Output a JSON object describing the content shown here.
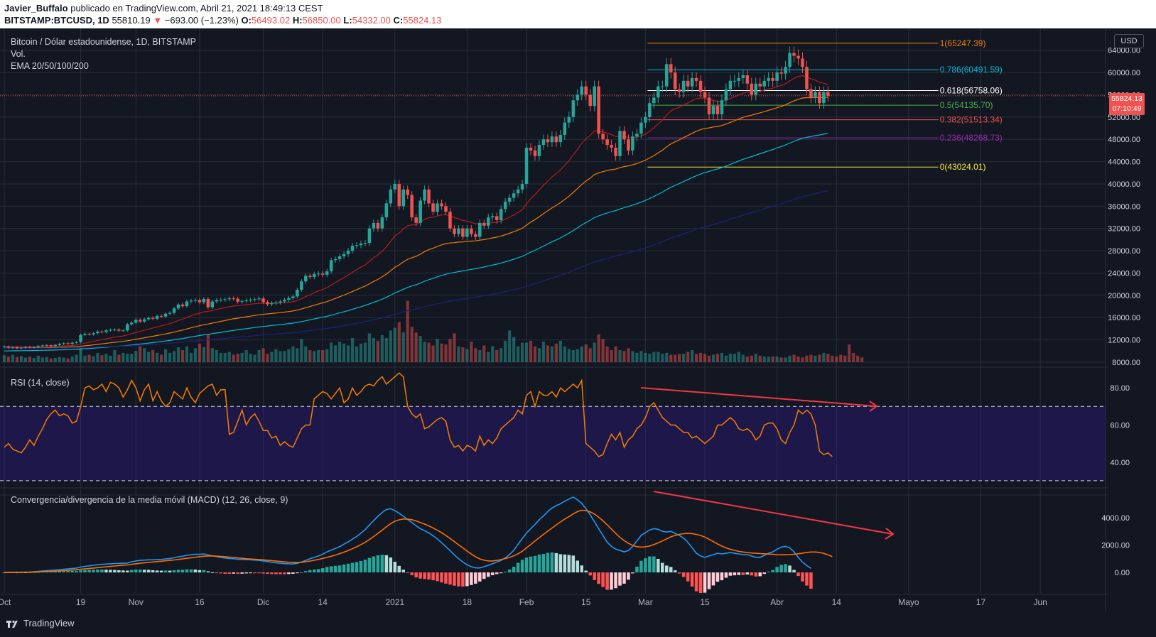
{
  "header": {
    "author": "Javier_Buffalo",
    "published_text": "publicado en TradingView.com, Abril 21, 2021 18:49:13 CEST",
    "symbol": "BITSTAMP:BTCUSD, 1D",
    "last_price": "55810.19",
    "change": "−693.00 (−1.23%)",
    "o_label": "O:",
    "o_value": "56493.02",
    "h_label": "H:",
    "h_value": "56850.00",
    "l_label": "L:",
    "l_value": "54332.00",
    "c_label": "C:",
    "c_value": "55824.13"
  },
  "legend": {
    "title": "Bitcoin / Dólar estadounidense, 1D, BITSTAMP",
    "volume": "Vol.",
    "ema": "EMA 20/50/100/200",
    "rsi": "RSI (14, close)",
    "macd": "Convergencia/divergencia de la media móvil (MACD) (12, 26, close, 9)"
  },
  "axis": {
    "currency": "USD",
    "price_tag_value": "55824.13",
    "price_tag_timer": "07:10:49"
  },
  "footer": {
    "brand": "TradingView"
  },
  "colors": {
    "up": "#26a69a",
    "down": "#ef5350",
    "background": "#131722",
    "grid": "#2a2e39",
    "ema20": "#b71c1c",
    "ema50": "#f57c00",
    "ema100": "#00bcd4",
    "ema200": "#1a237e",
    "rsi_line": "#f57c00",
    "rsi_band": "#311b92",
    "macd_line": "#2196f3",
    "signal_line": "#ff6d00"
  },
  "chart_data": [
    {
      "type": "candlestick",
      "title": "Bitcoin / Dólar estadounidense, 1D, BITSTAMP",
      "x_ticks": [
        "Oct",
        "19",
        "Nov",
        "16",
        "Dic",
        "14",
        "2021",
        "18",
        "Feb",
        "15",
        "Mar",
        "15",
        "Abr",
        "14",
        "Mayo",
        "17",
        "Jun"
      ],
      "x_tick_days": [
        0,
        18,
        31,
        46,
        61,
        75,
        92,
        109,
        123,
        137,
        151,
        165,
        182,
        196,
        213,
        230,
        244
      ],
      "x_range_days": [
        0,
        250
      ],
      "y_ticks": [
        64000,
        60000,
        56000,
        52000,
        48000,
        44000,
        40000,
        36000,
        32000,
        28000,
        24000,
        20000,
        16000,
        12000,
        8000
      ],
      "ylim": [
        8000,
        66000
      ],
      "closes": [
        10800,
        10600,
        10700,
        10500,
        10600,
        10750,
        10650,
        10700,
        10900,
        11000,
        11050,
        10900,
        11100,
        11300,
        11400,
        11300,
        11500,
        11600,
        12900,
        13100,
        13000,
        13200,
        13500,
        13400,
        13700,
        13800,
        13850,
        13650,
        13700,
        14800,
        15100,
        15600,
        15300,
        15700,
        15950,
        15800,
        16300,
        16200,
        16700,
        16850,
        17650,
        18350,
        18050,
        18900,
        19050,
        19150,
        18750,
        19350,
        17850,
        18900,
        19150,
        19200,
        19300,
        19450,
        19400,
        18850,
        18950,
        19100,
        19200,
        19300,
        19450,
        18800,
        18400,
        18600,
        18700,
        18900,
        19200,
        19500,
        19800,
        21000,
        22500,
        23500,
        23300,
        23800,
        23900,
        23700,
        24300,
        26300,
        26500,
        27000,
        27400,
        28000,
        28900,
        29000,
        29300,
        29400,
        32000,
        33000,
        32000,
        34000,
        36500,
        39000,
        40000,
        36000,
        39000,
        38000,
        34000,
        33000,
        37000,
        39000,
        36500,
        35000,
        36500,
        36000,
        35000,
        32000,
        31000,
        32000,
        30500,
        32000,
        31000,
        30500,
        33000,
        32500,
        34000,
        34200,
        33500,
        35500,
        36800,
        37500,
        38300,
        39000,
        40000,
        46500,
        46000,
        45000,
        47000,
        48000,
        47500,
        48500,
        47500,
        48800,
        51000,
        52000,
        55000,
        56000,
        57500,
        56000,
        54000,
        57500,
        49000,
        48000,
        47000,
        46500,
        45000,
        49500,
        48000,
        46000,
        48500,
        49000,
        51000,
        52000,
        54500,
        55500,
        57500,
        57500,
        61500,
        60000,
        57000,
        56500,
        58500,
        57500,
        59000,
        58500,
        56500,
        55500,
        52500,
        54000,
        52500,
        55000,
        57000,
        58500,
        58500,
        59000,
        59500,
        58000,
        56000,
        58000,
        57500,
        58500,
        59000,
        58500,
        60000,
        59800,
        61000,
        63500,
        63000,
        62500,
        61000,
        57000,
        55500,
        56500,
        54500,
        56500,
        55824
      ],
      "ema20_end": 58500,
      "ema50_end": 57000,
      "ema100_end": 49300,
      "ema200_end": 38800
    },
    {
      "type": "bar",
      "title": "Vol.",
      "values": [
        1.5,
        1.2,
        1.6,
        1.1,
        1.3,
        1.0,
        1.2,
        0.9,
        1.4,
        1.0,
        1.1,
        0.8,
        0.9,
        1.1,
        1.0,
        0.8,
        1.2,
        1.6,
        3.2,
        1.4,
        1.6,
        1.3,
        2.0,
        1.5,
        1.8,
        1.4,
        2.6,
        1.6,
        2.0,
        1.8,
        1.8,
        2.4,
        3.4,
        3.0,
        2.2,
        2.6,
        2.0,
        1.6,
        2.8,
        2.0,
        2.4,
        3.2,
        2.6,
        3.4,
        2.0,
        3.0,
        4.0,
        3.2,
        6.0,
        3.0,
        2.6,
        2.0,
        2.0,
        2.2,
        1.6,
        1.8,
        2.0,
        2.6,
        1.8,
        1.6,
        2.6,
        3.0,
        1.8,
        2.2,
        2.8,
        2.4,
        2.4,
        2.8,
        3.4,
        3.0,
        5.0,
        3.4,
        2.6,
        2.4,
        2.6,
        2.6,
        2.8,
        4.2,
        3.6,
        4.4,
        4.0,
        3.6,
        5.2,
        3.4,
        4.0,
        4.2,
        6.2,
        5.2,
        4.6,
        5.8,
        5.2,
        6.8,
        7.4,
        8.6,
        6.4,
        13.2,
        7.6,
        6.4,
        5.6,
        4.4,
        4.2,
        3.6,
        5.0,
        4.0,
        3.8,
        5.0,
        6.2,
        3.4,
        3.2,
        2.8,
        4.4,
        3.0,
        2.6,
        3.6,
        2.2,
        3.4,
        2.6,
        3.0,
        4.6,
        6.8,
        5.4,
        3.4,
        4.2,
        4.2,
        4.6,
        3.4,
        3.0,
        4.4,
        3.6,
        3.4,
        4.0,
        4.6,
        3.4,
        2.8,
        2.6,
        2.8,
        3.4,
        3.8,
        3.0,
        4.2,
        6.0,
        5.0,
        3.4,
        2.6,
        3.4,
        2.6,
        2.4,
        3.0,
        2.4,
        2.0,
        2.4,
        2.0,
        1.8,
        2.2,
        2.2,
        1.8,
        2.0,
        1.6,
        1.6,
        1.8,
        1.8,
        2.2,
        2.6,
        1.8,
        2.0,
        1.8,
        1.4,
        1.6,
        1.8,
        2.0,
        1.4,
        1.8,
        1.8,
        2.2,
        1.6,
        1.2,
        1.4,
        1.8,
        1.4,
        1.2,
        1.2,
        1.2,
        1.2,
        1.0,
        1.0,
        1.4,
        1.6,
        1.2,
        1.0,
        1.4,
        1.6,
        1.4,
        1.6,
        2.0,
        1.8,
        1.4,
        1.2,
        1.6,
        1.4,
        3.8,
        2.0,
        1.4,
        1.0
      ]
    },
    {
      "type": "fibonacci",
      "levels": [
        {
          "ratio": "1",
          "value": 65247.39,
          "label": "1(65247.39)",
          "color": "#f57c00"
        },
        {
          "ratio": "0.786",
          "value": 60491.59,
          "label": "0.786(60491.59)",
          "color": "#00bcd4"
        },
        {
          "ratio": "0.618",
          "value": 56758.06,
          "label": "0.618(56758.06)",
          "color": "#ffffff"
        },
        {
          "ratio": "0.5",
          "value": 54135.7,
          "label": "0.5(54135.70)",
          "color": "#4caf50"
        },
        {
          "ratio": "0.382",
          "value": 51513.34,
          "label": "0.382(51513.34)",
          "color": "#ef5350"
        },
        {
          "ratio": "0.236",
          "value": 48268.73,
          "label": "0.236(48268.73)",
          "color": "#9c27b0"
        },
        {
          "ratio": "0",
          "value": 43024.01,
          "label": "0(43024.01)",
          "color": "#ffeb3b"
        }
      ]
    },
    {
      "type": "line",
      "title": "RSI (14, close)",
      "y_ticks": [
        80,
        60,
        40
      ],
      "ylim": [
        25,
        90
      ],
      "band": [
        30,
        70
      ],
      "values": [
        48,
        50,
        47,
        46,
        45,
        48,
        52,
        49,
        54,
        58,
        63,
        66,
        68,
        65,
        66,
        65,
        61,
        62,
        70,
        80,
        81,
        79,
        80,
        82,
        78,
        83,
        82,
        80,
        75,
        79,
        84,
        80,
        73,
        79,
        82,
        73,
        78,
        73,
        70,
        72,
        78,
        76,
        74,
        80,
        75,
        72,
        77,
        79,
        81,
        82,
        76,
        79,
        79,
        55,
        56,
        62,
        68,
        60,
        64,
        66,
        62,
        57,
        57,
        53,
        54,
        49,
        51,
        49,
        48,
        53,
        58,
        60,
        60,
        74,
        76,
        78,
        77,
        74,
        77,
        80,
        72,
        74,
        80,
        76,
        78,
        81,
        82,
        81,
        84,
        86,
        82,
        84,
        86,
        88,
        86,
        70,
        66,
        64,
        66,
        58,
        59,
        61,
        63,
        64,
        62,
        52,
        48,
        49,
        46,
        49,
        48,
        46,
        54,
        49,
        52,
        50,
        53,
        58,
        60,
        62,
        64,
        68,
        66,
        76,
        78,
        70,
        78,
        76,
        76,
        78,
        75,
        80,
        78,
        80,
        82,
        80,
        84,
        50,
        48,
        46,
        43,
        44,
        50,
        55,
        52,
        56,
        48,
        52,
        54,
        58,
        60,
        64,
        70,
        72,
        68,
        64,
        62,
        60,
        60,
        58,
        56,
        56,
        53,
        54,
        52,
        50,
        52,
        54,
        60,
        60,
        62,
        64,
        62,
        58,
        57,
        58,
        56,
        52,
        54,
        60,
        61,
        61,
        58,
        52,
        50,
        56,
        60,
        68,
        66,
        68,
        66,
        60,
        46,
        44,
        45,
        43
      ]
    },
    {
      "type": "bar+line",
      "title": "Convergencia/divergencia de la media móvil (MACD) (12, 26, close, 9)",
      "y_ticks": [
        4000,
        2000,
        0
      ],
      "ylim": [
        -1500,
        5500
      ],
      "macd": [
        0,
        0,
        10,
        10,
        20,
        20,
        30,
        50,
        80,
        100,
        130,
        150,
        170,
        200,
        230,
        260,
        290,
        320,
        390,
        440,
        480,
        520,
        560,
        590,
        610,
        630,
        650,
        660,
        670,
        690,
        770,
        840,
        880,
        900,
        920,
        920,
        930,
        950,
        990,
        1010,
        1070,
        1140,
        1180,
        1250,
        1290,
        1320,
        1320,
        1350,
        1280,
        1210,
        1150,
        1100,
        1050,
        1020,
        1000,
        960,
        940,
        930,
        920,
        900,
        880,
        840,
        790,
        740,
        700,
        670,
        640,
        620,
        620,
        660,
        760,
        880,
        1000,
        1100,
        1200,
        1330,
        1500,
        1630,
        1750,
        1880,
        2060,
        2240,
        2430,
        2630,
        2870,
        3130,
        3460,
        3790,
        4100,
        4380,
        4590,
        4650,
        4520,
        4320,
        4100,
        3860,
        3650,
        3400,
        3200,
        3050,
        2880,
        2680,
        2440,
        2170,
        1880,
        1590,
        1280,
        1000,
        760,
        560,
        420,
        330,
        330,
        420,
        520,
        640,
        760,
        880,
        1060,
        1300,
        1620,
        2060,
        2470,
        2870,
        3200,
        3510,
        3850,
        4130,
        4440,
        4700,
        4880,
        5020,
        5200,
        5360,
        5500,
        5300,
        5050,
        4650,
        4200,
        3700,
        3200,
        2700,
        2200,
        1900,
        1700,
        1600,
        1500,
        1600,
        1900,
        2300,
        2700,
        2900,
        3100,
        3200,
        3150,
        3000,
        2950,
        3000,
        2850,
        2700,
        2500,
        2200,
        1800,
        1400,
        1200,
        1100,
        1200,
        1300,
        1400,
        1350,
        1400,
        1450,
        1400,
        1350,
        1300,
        1300,
        1200,
        1100,
        1100,
        1250,
        1400,
        1500,
        1700,
        1850,
        1900,
        1800,
        1500,
        1100,
        750,
        500,
        300
      ],
      "signal": [
        0,
        0,
        5,
        8,
        12,
        15,
        18,
        25,
        35,
        50,
        65,
        80,
        95,
        115,
        135,
        155,
        175,
        200,
        230,
        260,
        290,
        320,
        350,
        380,
        410,
        440,
        470,
        500,
        525,
        555,
        590,
        630,
        670,
        700,
        730,
        760,
        790,
        820,
        850,
        880,
        910,
        950,
        990,
        1030,
        1070,
        1110,
        1150,
        1180,
        1200,
        1200,
        1190,
        1170,
        1150,
        1120,
        1090,
        1060,
        1030,
        1000,
        980,
        960,
        940,
        920,
        890,
        860,
        830,
        800,
        770,
        740,
        720,
        720,
        740,
        780,
        830,
        890,
        950,
        1020,
        1100,
        1180,
        1270,
        1370,
        1480,
        1600,
        1730,
        1870,
        2030,
        2200,
        2400,
        2620,
        2850,
        3090,
        3330,
        3560,
        3740,
        3840,
        3900,
        3900,
        3850,
        3760,
        3650,
        3530,
        3400,
        3250,
        3080,
        2900,
        2700,
        2480,
        2250,
        2020,
        1790,
        1560,
        1340,
        1150,
        990,
        890,
        840,
        840,
        880,
        940,
        1010,
        1090,
        1210,
        1360,
        1550,
        1790,
        2040,
        2300,
        2540,
        2780,
        3010,
        3240,
        3470,
        3690,
        3890,
        4080,
        4270,
        4440,
        4540,
        4520,
        4420,
        4260,
        4040,
        3770,
        3470,
        3160,
        2850,
        2560,
        2320,
        2130,
        1970,
        1880,
        1850,
        1870,
        1930,
        2030,
        2160,
        2300,
        2450,
        2600,
        2700,
        2780,
        2830,
        2850,
        2830,
        2780,
        2700,
        2580,
        2420,
        2250,
        2080,
        1920,
        1790,
        1690,
        1610,
        1540,
        1490,
        1450,
        1420,
        1400,
        1380,
        1360,
        1340,
        1320,
        1300,
        1290,
        1290,
        1300,
        1320,
        1360,
        1410,
        1460,
        1490,
        1490,
        1460,
        1390,
        1290,
        1150
      ]
    }
  ]
}
